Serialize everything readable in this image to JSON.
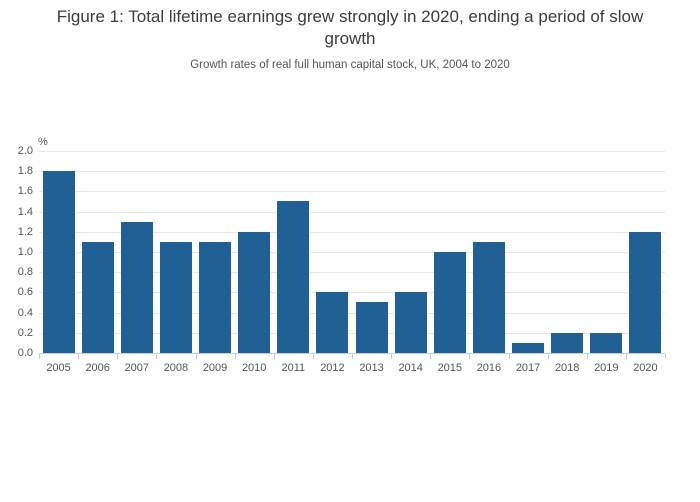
{
  "title": "Figure 1: Total lifetime earnings grew strongly in 2020, ending a period of slow growth",
  "subtitle": "Growth rates of real full human capital stock, UK, 2004 to 2020",
  "chart_data": {
    "type": "bar",
    "title": "Figure 1: Total lifetime earnings grew strongly in 2020, ending a period of slow growth",
    "subtitle": "Growth rates of real full human capital stock, UK, 2004 to 2020",
    "ylabel": "%",
    "xlabel": "",
    "categories": [
      "2005",
      "2006",
      "2007",
      "2008",
      "2009",
      "2010",
      "2011",
      "2012",
      "2013",
      "2014",
      "2015",
      "2016",
      "2017",
      "2018",
      "2019",
      "2020"
    ],
    "values": [
      1.8,
      1.1,
      1.3,
      1.1,
      1.1,
      1.2,
      1.5,
      0.6,
      0.5,
      0.6,
      1.0,
      1.1,
      0.1,
      0.2,
      0.2,
      1.2
    ],
    "ylim": [
      0,
      2.0
    ],
    "ytick_step": 0.2,
    "ytick_labels": [
      "0.0",
      "0.2",
      "0.4",
      "0.6",
      "0.8",
      "1.0",
      "1.2",
      "1.4",
      "1.6",
      "1.8",
      "2.0"
    ],
    "grid": true,
    "legend_position": "none",
    "bar_color": "#206095"
  },
  "colors": {
    "bar": "#206095",
    "gridline": "#e6e6e6",
    "axis_line": "#c4d0dd",
    "title_text": "#3c3c3c",
    "subtitle_text": "#555555",
    "tick_text": "#555555"
  }
}
